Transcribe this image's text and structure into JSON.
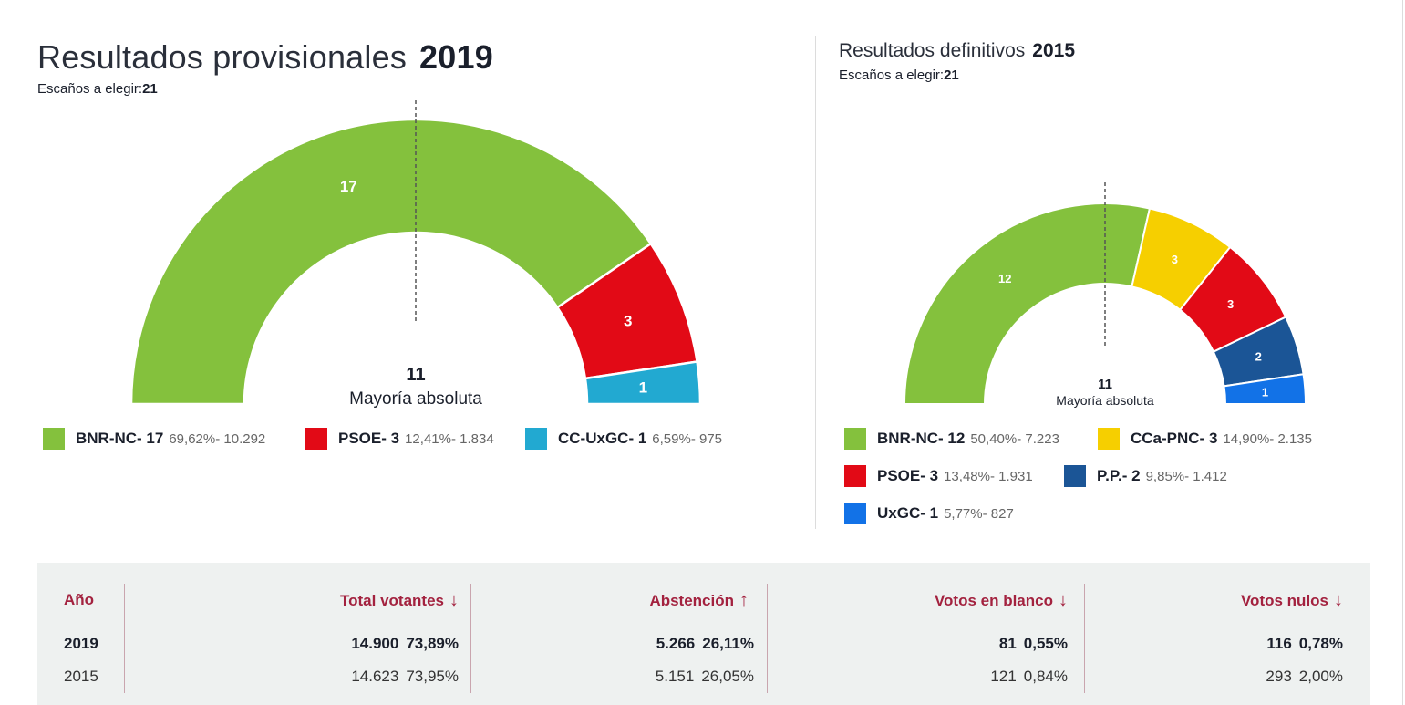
{
  "header_2019": {
    "title": "Resultados provisionales",
    "year": "2019",
    "seats_label": "Escaños a elegir:",
    "seats": "21"
  },
  "header_2015": {
    "title": "Resultados definitivos",
    "year": "2015",
    "seats_label": "Escaños a elegir:",
    "seats": "21"
  },
  "chart_data": [
    {
      "type": "pie",
      "subtype": "parliament-semicircle",
      "year": "2019",
      "total_seats": 21,
      "majority": {
        "value": "11",
        "label": "Mayoría absoluta"
      },
      "series": [
        {
          "name": "BNR-NC",
          "seats": 17,
          "percent": "69,62%",
          "votes": "10.292",
          "color": "#84c13d"
        },
        {
          "name": "PSOE",
          "seats": 3,
          "percent": "12,41%",
          "votes": "1.834",
          "color": "#e20a16"
        },
        {
          "name": "CC-UxGC",
          "seats": 1,
          "percent": "6,59%",
          "votes": "975",
          "color": "#22a9d1"
        }
      ]
    },
    {
      "type": "pie",
      "subtype": "parliament-semicircle",
      "year": "2015",
      "total_seats": 21,
      "majority": {
        "value": "11",
        "label": "Mayoría absoluta"
      },
      "series": [
        {
          "name": "BNR-NC",
          "seats": 12,
          "percent": "50,40%",
          "votes": "7.223",
          "color": "#84c13d"
        },
        {
          "name": "CCa-PNC",
          "seats": 3,
          "percent": "14,90%",
          "votes": "2.135",
          "color": "#f6cf00"
        },
        {
          "name": "PSOE",
          "seats": 3,
          "percent": "13,48%",
          "votes": "1.931",
          "color": "#e20a16"
        },
        {
          "name": "P.P.",
          "seats": 2,
          "percent": "9,85%",
          "votes": "1.412",
          "color": "#1b5596"
        },
        {
          "name": "UxGC",
          "seats": 1,
          "percent": "5,77%",
          "votes": "827",
          "color": "#1272e7"
        }
      ]
    }
  ],
  "legend_2019": [
    {
      "label": "BNR-NC- 17",
      "stats": "69,62%- 10.292"
    },
    {
      "label": "PSOE- 3",
      "stats": "12,41%- 1.834"
    },
    {
      "label": "CC-UxGC- 1",
      "stats": "6,59%- 975"
    }
  ],
  "legend_2015": [
    {
      "label": "BNR-NC- 12",
      "stats": "50,40%- 7.223"
    },
    {
      "label": "CCa-PNC- 3",
      "stats": "14,90%- 2.135"
    },
    {
      "label": "PSOE- 3",
      "stats": "13,48%- 1.931"
    },
    {
      "label": "P.P.- 2",
      "stats": "9,85%- 1.412"
    },
    {
      "label": "UxGC- 1",
      "stats": "5,77%- 827"
    }
  ],
  "table": {
    "headers": {
      "year": "Año",
      "total": "Total votantes",
      "abstention": "Abstención",
      "blank": "Votos en blanco",
      "null": "Votos nulos"
    },
    "arrows": {
      "total": "↓",
      "abstention": "↑",
      "blank": "↓",
      "null": "↓"
    },
    "rows": [
      {
        "year": "2019",
        "total": "14.900",
        "total_pct": "73,89%",
        "abstention": "5.266",
        "abstention_pct": "26,11%",
        "blank": "81",
        "blank_pct": "0,55%",
        "null": "116",
        "null_pct": "0,78%"
      },
      {
        "year": "2015",
        "total": "14.623",
        "total_pct": "73,95%",
        "abstention": "5.151",
        "abstention_pct": "26,05%",
        "blank": "121",
        "blank_pct": "0,84%",
        "null": "293",
        "null_pct": "2,00%"
      }
    ]
  }
}
